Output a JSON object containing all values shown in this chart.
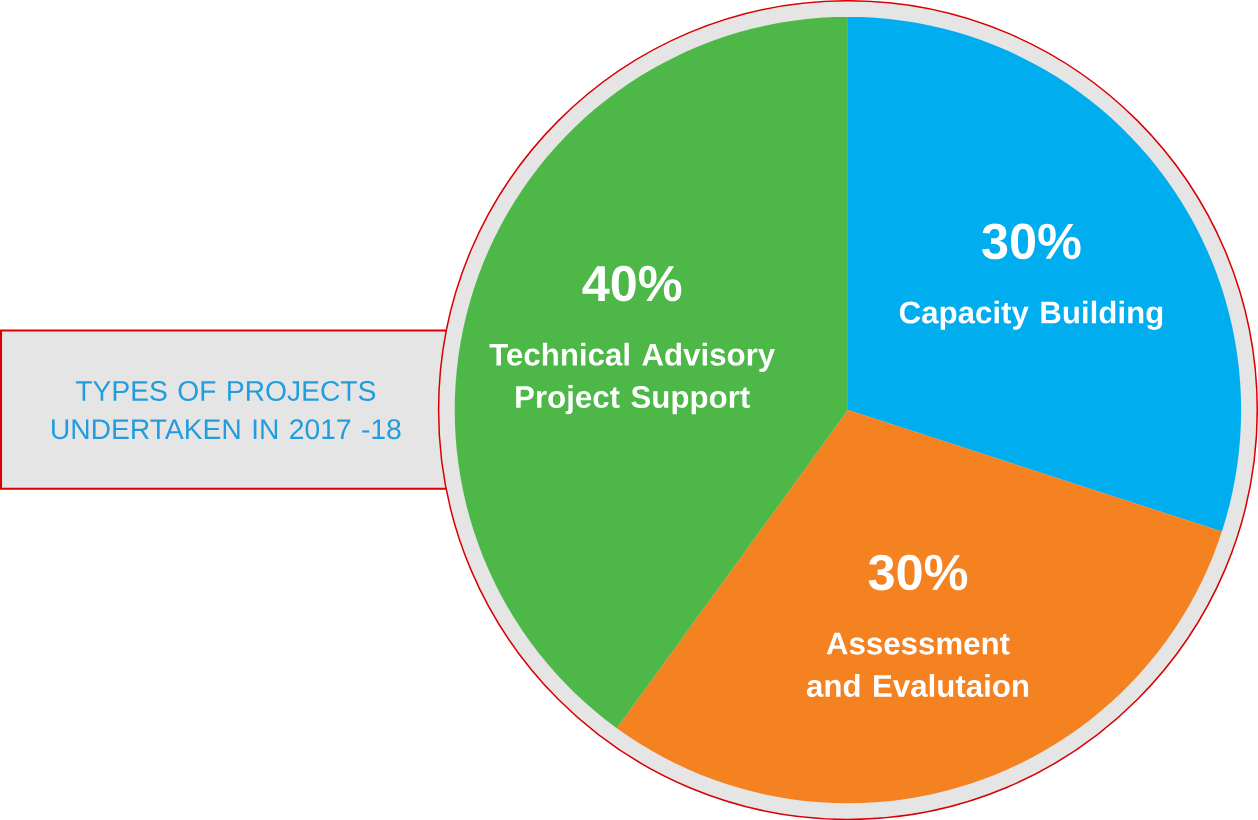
{
  "chart_data": {
    "type": "pie",
    "title": "TYPES OF PROJECTS UNDERTAKEN IN 2017 -18",
    "categories": [
      "Capacity Building",
      "Assessment and Evalutaion",
      "Technical Advisory Project Support"
    ],
    "values": [
      30,
      30,
      40
    ],
    "value_labels": [
      "30%",
      "30%",
      "40%"
    ],
    "colors": [
      "#00aeef",
      "#f58220",
      "#4db848"
    ]
  }
}
